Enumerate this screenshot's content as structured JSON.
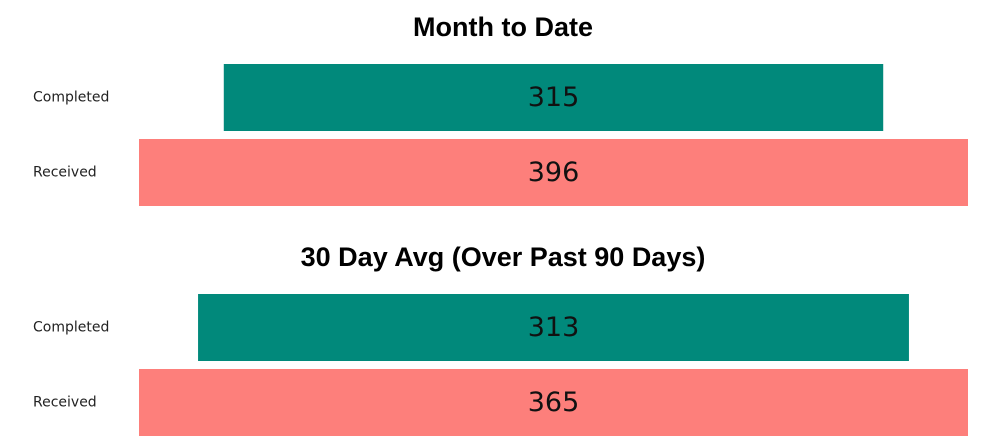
{
  "chart_data": [
    {
      "type": "funnel",
      "title": "Month to Date",
      "categories": [
        "Completed",
        "Received"
      ],
      "values": [
        315,
        396
      ],
      "colors": [
        "#01897b",
        "#fd7f7b"
      ]
    },
    {
      "type": "funnel",
      "title": "30 Day Avg (Over Past 90 Days)",
      "categories": [
        "Completed",
        "Received"
      ],
      "values": [
        313,
        365
      ],
      "colors": [
        "#01897b",
        "#fd7f7b"
      ]
    }
  ]
}
